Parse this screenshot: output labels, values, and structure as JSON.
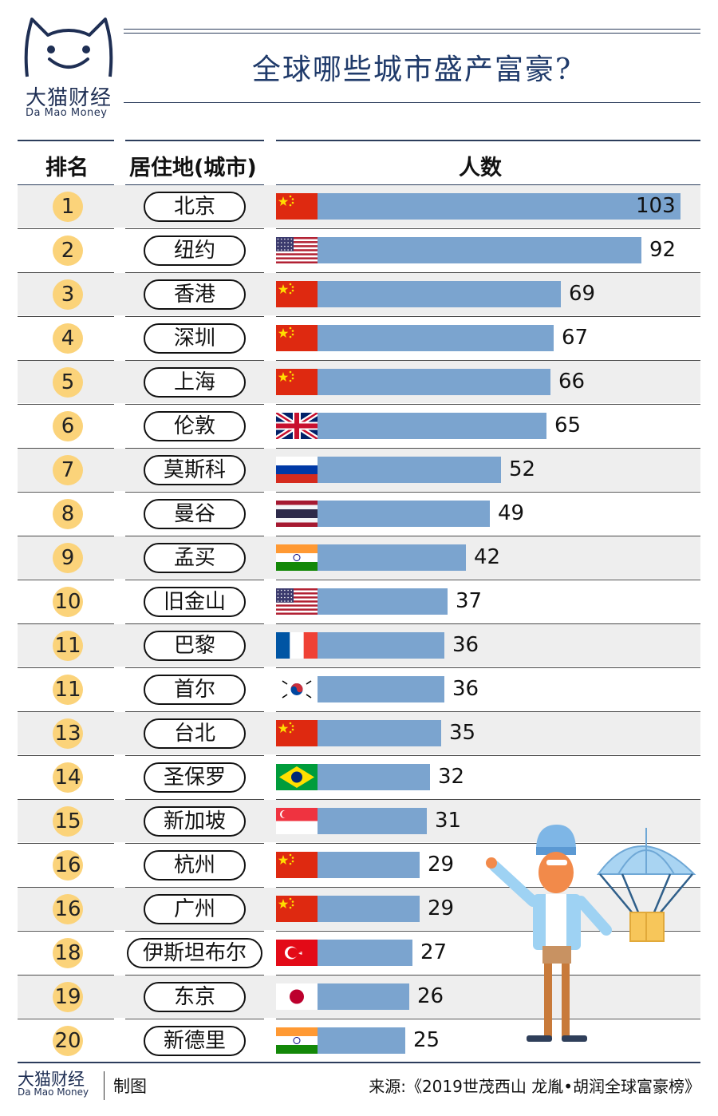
{
  "brand": {
    "name_cn": "大猫财经",
    "name_en": "Da Mao Money"
  },
  "title": "全球哪些城市盛产富豪?",
  "headers": {
    "rank": "排名",
    "city": "居住地(城市)",
    "count": "人数"
  },
  "colors": {
    "bar": "#7ba4cf",
    "rank_circle": "#fbd37a",
    "row_alt": "#eeeeee",
    "title": "#1f3a6a"
  },
  "chart_data": {
    "type": "bar",
    "orientation": "horizontal",
    "title": "全球哪些城市盛产富豪?",
    "rows": [
      {
        "rank": "1",
        "city": "北京",
        "flag": "china",
        "value": 103
      },
      {
        "rank": "2",
        "city": "纽约",
        "flag": "usa",
        "value": 92
      },
      {
        "rank": "3",
        "city": "香港",
        "flag": "china",
        "value": 69
      },
      {
        "rank": "4",
        "city": "深圳",
        "flag": "china",
        "value": 67
      },
      {
        "rank": "5",
        "city": "上海",
        "flag": "china",
        "value": 66
      },
      {
        "rank": "6",
        "city": "伦敦",
        "flag": "uk",
        "value": 65
      },
      {
        "rank": "7",
        "city": "莫斯科",
        "flag": "russia",
        "value": 52
      },
      {
        "rank": "8",
        "city": "曼谷",
        "flag": "thailand",
        "value": 49
      },
      {
        "rank": "9",
        "city": "孟买",
        "flag": "india",
        "value": 42
      },
      {
        "rank": "10",
        "city": "旧金山",
        "flag": "usa",
        "value": 37
      },
      {
        "rank": "11",
        "city": "巴黎",
        "flag": "france",
        "value": 36
      },
      {
        "rank": "11",
        "city": "首尔",
        "flag": "korea",
        "value": 36
      },
      {
        "rank": "13",
        "city": "台北",
        "flag": "china",
        "value": 35
      },
      {
        "rank": "14",
        "city": "圣保罗",
        "flag": "brazil",
        "value": 32
      },
      {
        "rank": "15",
        "city": "新加坡",
        "flag": "singapore",
        "value": 31
      },
      {
        "rank": "16",
        "city": "杭州",
        "flag": "china",
        "value": 29
      },
      {
        "rank": "16",
        "city": "广州",
        "flag": "china",
        "value": 29
      },
      {
        "rank": "18",
        "city": "伊斯坦布尔",
        "flag": "turkey",
        "value": 27
      },
      {
        "rank": "19",
        "city": "东京",
        "flag": "japan",
        "value": 26
      },
      {
        "rank": "20",
        "city": "新德里",
        "flag": "india",
        "value": 25
      }
    ]
  },
  "footer": {
    "made_by": "制图",
    "source": "来源:《2019世茂西山 龙胤•胡润全球富豪榜》"
  },
  "illustration": {
    "icon": "parachute-person-illustration"
  }
}
